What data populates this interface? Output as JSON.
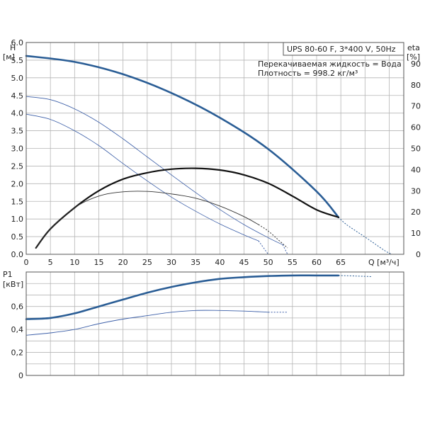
{
  "chart_data": {
    "type": "line",
    "title_box": "UPS 80-60 F, 3*400 V, 50Hz",
    "notes": [
      "Перекачиваемая жидкость = Вода",
      "Плотность = 998.2 кг/м³"
    ],
    "top": {
      "ylabel_left": "H",
      "ylabel_left_unit": "[м]",
      "ylabel_right": "eta",
      "ylabel_right_unit": "[%]",
      "xlabel": "Q [м³/ч]",
      "xlim": [
        0,
        78
      ],
      "ylim_left": [
        0,
        6.0
      ],
      "ylim_right": [
        0,
        100
      ],
      "x_ticks": [
        "0",
        "5",
        "10",
        "15",
        "20",
        "25",
        "30",
        "35",
        "40",
        "45",
        "50",
        "55",
        "60",
        "65"
      ],
      "y_ticks_left": [
        "0.0",
        "0.5",
        "1.0",
        "1.5",
        "2.0",
        "2.5",
        "3.0",
        "3.5",
        "4.0",
        "4.5",
        "5.0",
        "5.5",
        "6.0"
      ],
      "y_ticks_right": [
        "0",
        "10",
        "20",
        "30",
        "40",
        "50",
        "60",
        "70",
        "80",
        "90"
      ],
      "series": [
        {
          "color": "#2a5d95",
          "width": 2.6,
          "axis": "left",
          "x": [
            0,
            10,
            20,
            30,
            40,
            50,
            60,
            64.5
          ],
          "y": [
            5.62,
            5.45,
            5.1,
            4.57,
            3.87,
            2.98,
            1.78,
            1.05
          ],
          "dash_x": [
            64.5,
            66,
            68,
            70,
            72,
            74,
            75.5
          ],
          "dash_y": [
            1.05,
            0.86,
            0.67,
            0.49,
            0.3,
            0.11,
            0
          ]
        },
        {
          "color": "#3c5fa8",
          "width": 0.8,
          "axis": "left",
          "x": [
            0,
            5,
            10,
            15,
            20,
            25,
            30,
            35,
            40,
            45,
            50,
            53
          ],
          "y": [
            4.47,
            4.38,
            4.12,
            3.74,
            3.27,
            2.76,
            2.25,
            1.75,
            1.27,
            0.84,
            0.47,
            0.27
          ],
          "dash_x": [
            53,
            54
          ],
          "dash_y": [
            0.27,
            0
          ]
        },
        {
          "color": "#3c5fa8",
          "width": 0.8,
          "axis": "left",
          "x": [
            0,
            5,
            10,
            15,
            20,
            25,
            30,
            35,
            40,
            45,
            48
          ],
          "y": [
            3.97,
            3.82,
            3.5,
            3.08,
            2.57,
            2.08,
            1.62,
            1.22,
            0.86,
            0.55,
            0.38
          ],
          "dash_x": [
            48,
            50
          ],
          "dash_y": [
            0.38,
            0
          ]
        },
        {
          "color": "#111111",
          "width": 2.2,
          "axis": "right",
          "x": [
            2,
            5,
            10,
            15,
            20,
            25,
            30,
            35,
            40,
            45,
            50,
            55,
            60,
            64.5
          ],
          "y": [
            3,
            12,
            22,
            30,
            35.5,
            38.5,
            40.2,
            40.6,
            39.8,
            37.5,
            33.5,
            27.5,
            21,
            17.5
          ]
        },
        {
          "color": "#333333",
          "width": 0.9,
          "axis": "right",
          "x": [
            2,
            5,
            10,
            15,
            20,
            25,
            30,
            35,
            40,
            45,
            48
          ],
          "y": [
            3,
            12,
            22,
            27.5,
            29.5,
            29.7,
            28.5,
            26.5,
            22.8,
            17.8,
            14
          ],
          "dash_x": [
            48,
            50,
            52,
            54
          ],
          "dash_y": [
            14,
            11,
            7,
            3
          ]
        }
      ]
    },
    "bottom": {
      "ylabel": "P1",
      "ylabel_unit": "[кВт]",
      "xlim": [
        0,
        78
      ],
      "ylim": [
        0,
        0.9
      ],
      "y_ticks": [
        "0",
        "0,2",
        "0,4",
        "0,6"
      ],
      "series": [
        {
          "color": "#2a5d95",
          "width": 2.6,
          "x": [
            0,
            5,
            10,
            15,
            20,
            25,
            30,
            35,
            40,
            45,
            50,
            55,
            60,
            64.5
          ],
          "y": [
            0.49,
            0.5,
            0.54,
            0.6,
            0.66,
            0.72,
            0.77,
            0.81,
            0.84,
            0.855,
            0.865,
            0.87,
            0.87,
            0.87
          ],
          "dash_x": [
            64.5,
            68,
            71.5
          ],
          "dash_y": [
            0.87,
            0.865,
            0.86
          ]
        },
        {
          "color": "#3c5fa8",
          "width": 0.9,
          "x": [
            0,
            5,
            10,
            15,
            20,
            25,
            30,
            35,
            40,
            45,
            50
          ],
          "y": [
            0.35,
            0.37,
            0.4,
            0.45,
            0.49,
            0.52,
            0.55,
            0.565,
            0.565,
            0.56,
            0.55
          ],
          "dash_x": [
            50,
            54
          ],
          "dash_y": [
            0.55,
            0.55
          ]
        }
      ]
    }
  }
}
